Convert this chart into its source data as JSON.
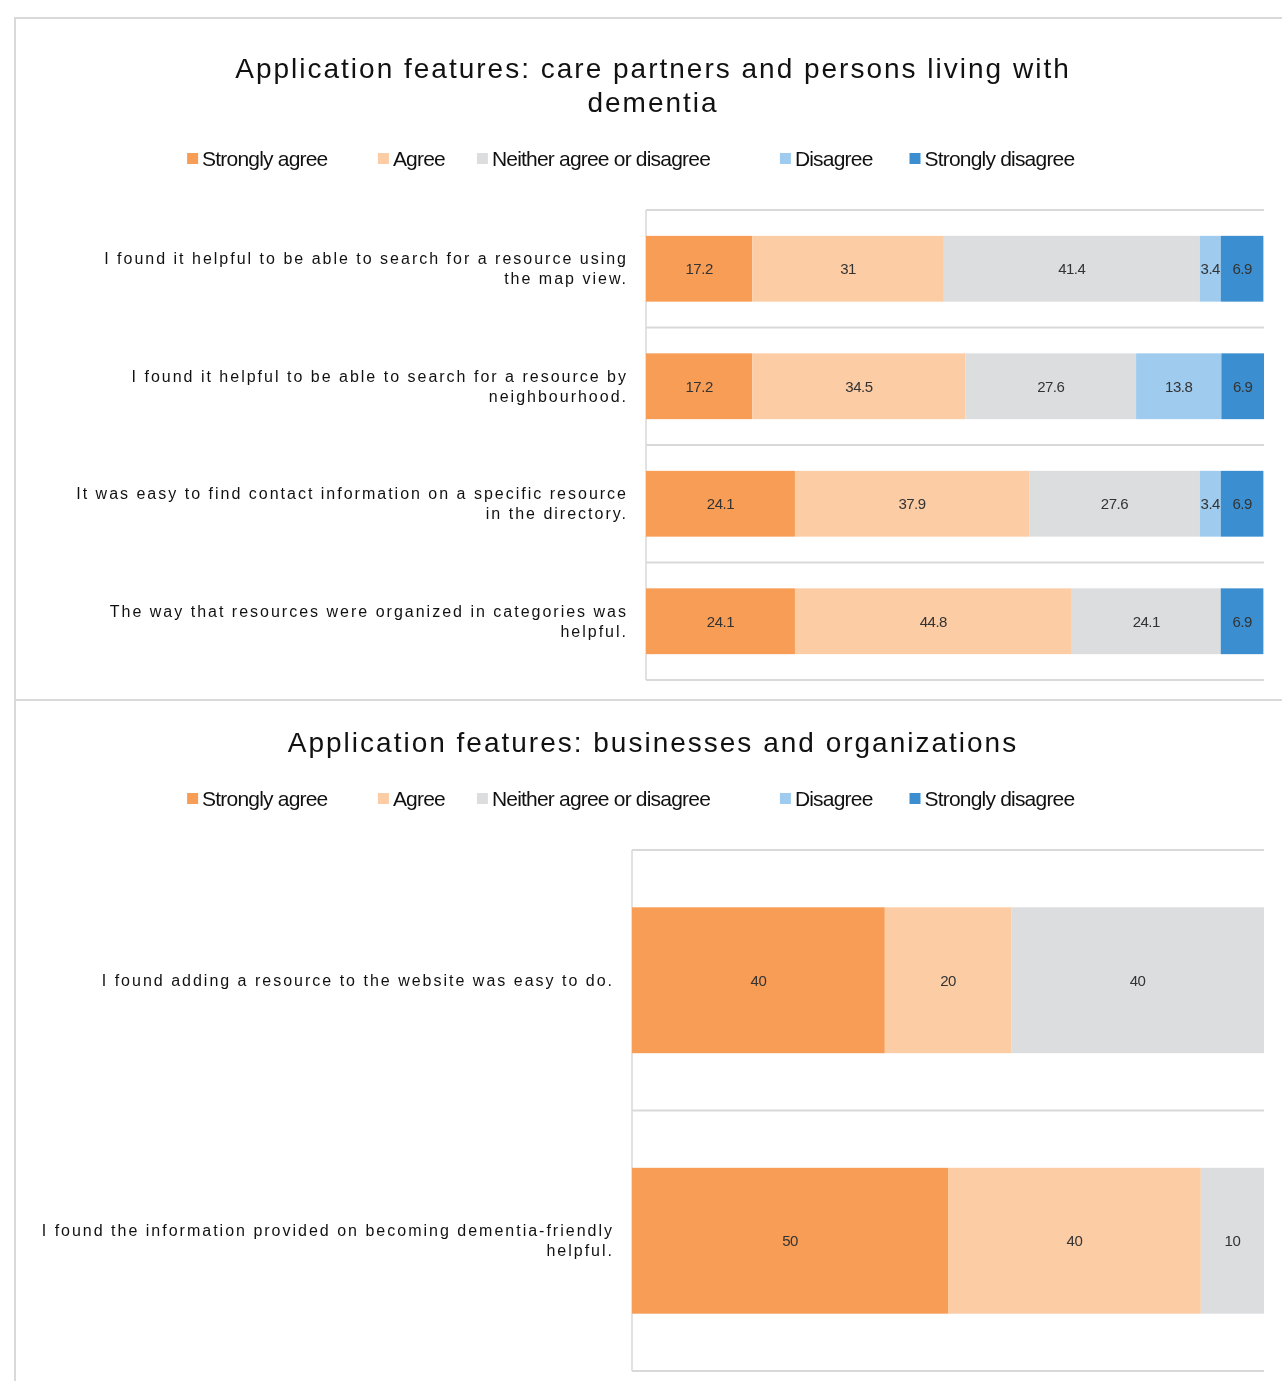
{
  "chart_data": [
    {
      "type": "bar",
      "orientation": "horizontal",
      "stacked": true,
      "title": "Application features: care partners and persons living with dementia",
      "categories": [
        "I found it helpful to be able to search for a resource using the map view.",
        "I found it helpful to be able to search for a resource by neighbourhood.",
        "It was easy to find contact information on a specific resource in the directory.",
        "The way that resources were organized in categories was helpful."
      ],
      "series": [
        {
          "name": "Strongly agree",
          "color": "#f79d56",
          "values": [
            17.2,
            17.2,
            24.1,
            24.1
          ]
        },
        {
          "name": "Agree",
          "color": "#fccca5",
          "values": [
            31,
            34.5,
            37.9,
            44.8
          ]
        },
        {
          "name": "Neither agree or disagree",
          "color": "#dcdddf",
          "values": [
            41.4,
            27.6,
            27.6,
            24.1
          ]
        },
        {
          "name": "Disagree",
          "color": "#9fcbee",
          "values": [
            3.4,
            13.8,
            3.4,
            null
          ]
        },
        {
          "name": "Strongly disagree",
          "color": "#3b8fd0",
          "values": [
            6.9,
            6.9,
            6.9,
            6.9
          ]
        }
      ],
      "xlim": [
        0,
        100
      ],
      "tick_labels": "y",
      "data_labels": true,
      "legend": "top",
      "grid": "y"
    },
    {
      "type": "bar",
      "orientation": "horizontal",
      "stacked": true,
      "title": "Application features: businesses and organizations",
      "categories": [
        "I found adding a resource to the website was easy to do.",
        "I found the information provided on becoming dementia-friendly helpful."
      ],
      "series": [
        {
          "name": "Strongly agree",
          "color": "#f79d56",
          "values": [
            40,
            50
          ]
        },
        {
          "name": "Agree",
          "color": "#fccca5",
          "values": [
            20,
            40
          ]
        },
        {
          "name": "Neither agree or disagree",
          "color": "#dcdddf",
          "values": [
            40,
            10
          ]
        },
        {
          "name": "Disagree",
          "color": "#9fcbee",
          "values": [
            null,
            null
          ]
        },
        {
          "name": "Strongly disagree",
          "color": "#3b8fd0",
          "values": [
            null,
            null
          ]
        }
      ],
      "xlim": [
        0,
        100
      ],
      "tick_labels": "y",
      "data_labels": true,
      "legend": "top",
      "grid": "y"
    }
  ]
}
